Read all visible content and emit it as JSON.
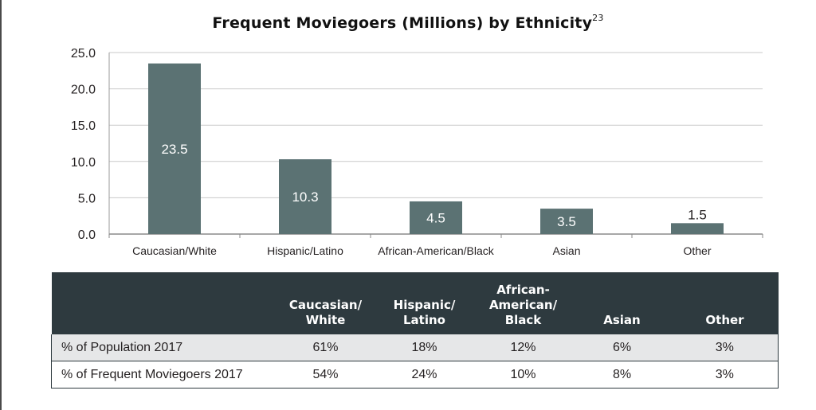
{
  "chart_data": {
    "type": "bar",
    "title": "Frequent Moviegoers (Millions) by Ethnicity",
    "title_superscript": "23",
    "categories": [
      "Caucasian/White",
      "Hispanic/Latino",
      "African-American/Black",
      "Asian",
      "Other"
    ],
    "values": [
      23.5,
      10.3,
      4.5,
      3.5,
      1.5
    ],
    "value_labels": [
      "23.5",
      "10.3",
      "4.5",
      "3.5",
      "1.5"
    ],
    "yticks": [
      "0.0",
      "5.0",
      "10.0",
      "15.0",
      "20.0",
      "25.0"
    ],
    "ylim": [
      0,
      25
    ],
    "xlabel": "",
    "ylabel": "",
    "grid": true,
    "bar_color": "#5b7273",
    "grid_color": "#c9c9c9"
  },
  "table": {
    "header_bg": "#2e3a3f",
    "columns": [
      "",
      "Caucasian/\nWhite",
      "Hispanic/\nLatino",
      "African-\nAmerican/\nBlack",
      "Asian",
      "Other"
    ],
    "rows": [
      {
        "label": "% of Population 2017",
        "cells": [
          "61%",
          "18%",
          "12%",
          "6%",
          "3%"
        ]
      },
      {
        "label": "% of Frequent Moviegoers 2017",
        "cells": [
          "54%",
          "24%",
          "10%",
          "8%",
          "3%"
        ]
      }
    ]
  }
}
